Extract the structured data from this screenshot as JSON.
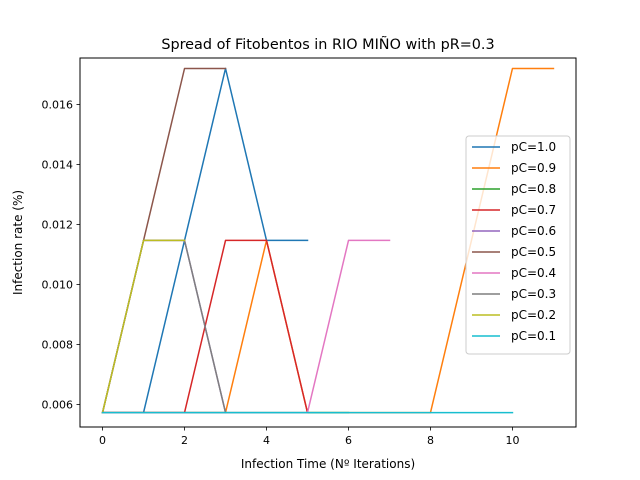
{
  "chart_data": {
    "type": "line",
    "title": "Spread of Fitobentos in RIO MIÑO with pR=0.3",
    "xlabel": "Infection Time (Nº Iterations)",
    "ylabel": "Infection rate (%)",
    "xlim": [
      -0.55,
      11.55
    ],
    "ylim": [
      0.00525,
      0.01755
    ],
    "x_ticks": [
      0,
      2,
      4,
      6,
      8,
      10
    ],
    "y_ticks": [
      0.006,
      0.008,
      0.01,
      0.012,
      0.014,
      0.016
    ],
    "x_tick_labels": [
      "0",
      "2",
      "4",
      "6",
      "8",
      "10"
    ],
    "y_tick_labels": [
      "0.006",
      "0.008",
      "0.010",
      "0.012",
      "0.014",
      "0.016"
    ],
    "grid": false,
    "legend_position": "center-right",
    "series": [
      {
        "name": "pC=1.0",
        "color": "#1f77b4",
        "x": [
          0,
          1,
          2,
          3,
          4,
          5
        ],
        "y": [
          0.00573,
          0.00573,
          0.01147,
          0.0172,
          0.01147,
          0.01147
        ]
      },
      {
        "name": "pC=0.9",
        "color": "#ff7f0e",
        "x": [
          0,
          1,
          2,
          3,
          4,
          5,
          6,
          7,
          8,
          9,
          10,
          11
        ],
        "y": [
          0.00573,
          0.00573,
          0.00573,
          0.00573,
          0.01147,
          0.00573,
          0.00573,
          0.00573,
          0.00573,
          0.01147,
          0.0172,
          0.0172
        ]
      },
      {
        "name": "pC=0.8",
        "color": "#2ca02c",
        "x": [
          0,
          1,
          2,
          3,
          4,
          5,
          6
        ],
        "y": [
          0.00573,
          0.00573,
          0.00573,
          0.00573,
          0.00573,
          0.00573,
          0.00573
        ]
      },
      {
        "name": "pC=0.7",
        "color": "#d62728",
        "x": [
          0,
          1,
          2,
          3,
          4,
          5
        ],
        "y": [
          0.00573,
          0.00573,
          0.00573,
          0.01147,
          0.01147,
          0.00573
        ]
      },
      {
        "name": "pC=0.6",
        "color": "#9467bd",
        "x": [
          0,
          1,
          2,
          3
        ],
        "y": [
          0.00573,
          0.01147,
          0.01147,
          0.00573
        ]
      },
      {
        "name": "pC=0.5",
        "color": "#8c564b",
        "x": [
          0,
          1,
          2,
          3
        ],
        "y": [
          0.00573,
          0.01147,
          0.0172,
          0.0172
        ]
      },
      {
        "name": "pC=0.4",
        "color": "#e377c2",
        "x": [
          0,
          1,
          2,
          3,
          4,
          5,
          6,
          7
        ],
        "y": [
          0.00573,
          0.00573,
          0.00573,
          0.00573,
          0.00573,
          0.00573,
          0.01147,
          0.01147
        ]
      },
      {
        "name": "pC=0.3",
        "color": "#7f7f7f",
        "x": [
          0,
          1,
          2,
          3
        ],
        "y": [
          0.00573,
          0.01147,
          0.01147,
          0.00573
        ]
      },
      {
        "name": "pC=0.2",
        "color": "#bcbd22",
        "x": [
          0,
          1,
          2
        ],
        "y": [
          0.00573,
          0.01147,
          0.01147
        ]
      },
      {
        "name": "pC=0.1",
        "color": "#17becf",
        "x": [
          0,
          1,
          2,
          3,
          4,
          5,
          6,
          7,
          8,
          9,
          10
        ],
        "y": [
          0.00573,
          0.00573,
          0.00573,
          0.00573,
          0.00573,
          0.00573,
          0.00573,
          0.00573,
          0.00573,
          0.00573,
          0.00573
        ]
      }
    ]
  }
}
